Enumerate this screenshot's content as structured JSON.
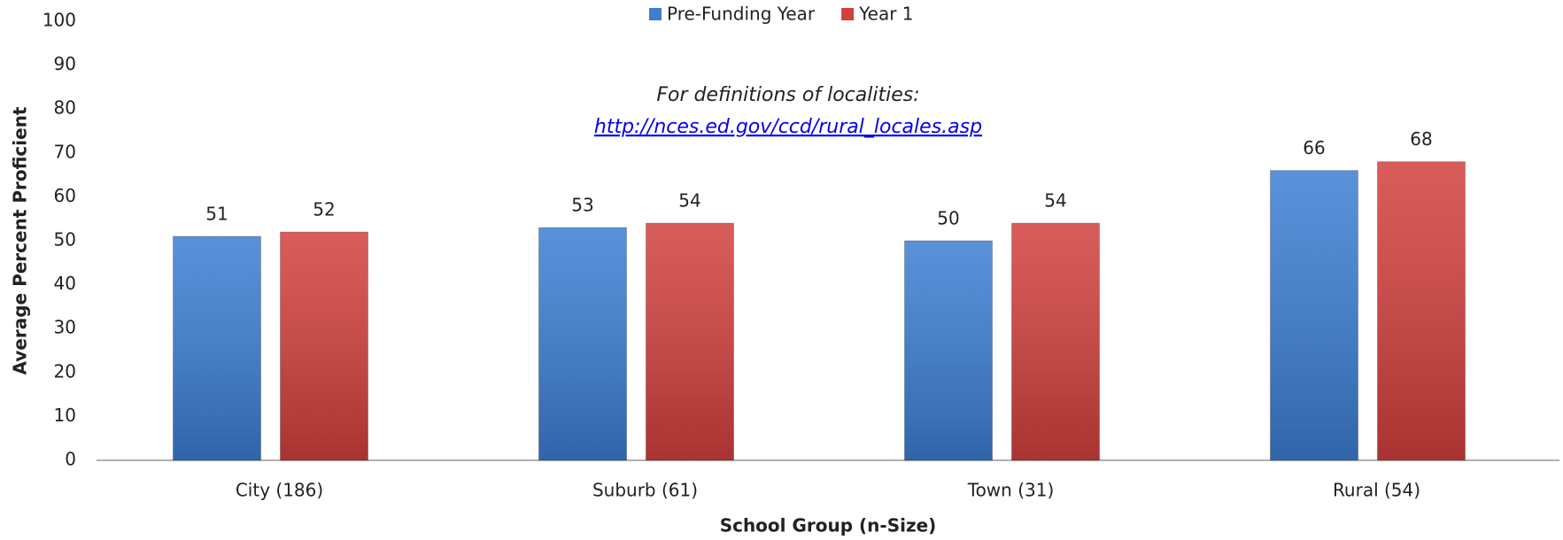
{
  "chart_data": {
    "type": "bar",
    "legend": "top",
    "annotation": "For definitions of localities:",
    "annotation_link": "http://nces.ed.gov/ccd/rural_locales.asp",
    "x_label": "School Group (n-Size)",
    "y_label": "Average Percent Proficient",
    "categories": [
      "City (186)",
      "Suburb (61)",
      "Town (31)",
      "Rural (54)"
    ],
    "series": [
      {
        "name": "Pre-Funding Year",
        "color": "#3c7ed3",
        "values": [
          51,
          53,
          50,
          66
        ]
      },
      {
        "name": "Year 1",
        "color": "#d2403d",
        "values": [
          52,
          54,
          54,
          68
        ]
      }
    ],
    "ylim": [
      0,
      100
    ],
    "yticks": [
      0,
      10,
      20,
      30,
      40,
      50,
      60,
      70,
      80,
      90,
      100
    ],
    "grid": false
  }
}
